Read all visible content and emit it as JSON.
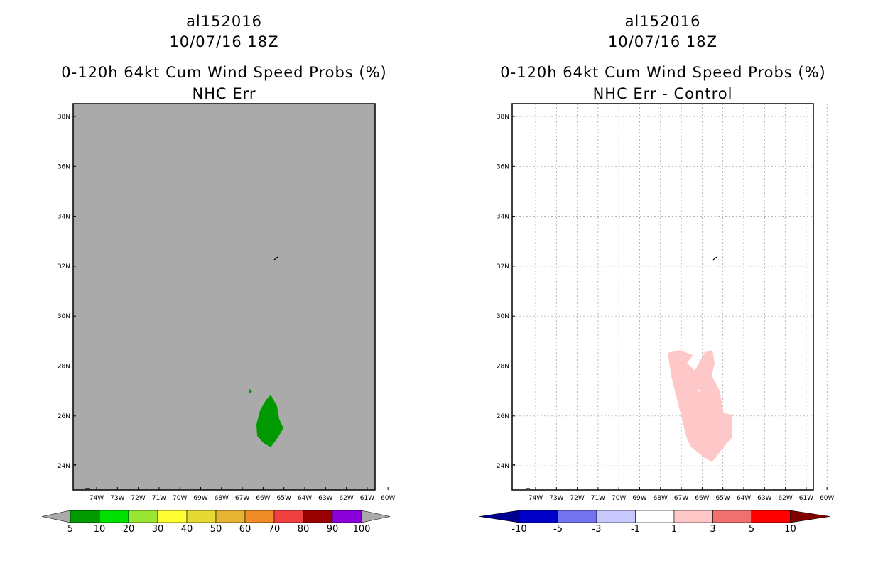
{
  "left": {
    "storm_id": "al152016",
    "datetime": "10/07/16 18Z",
    "title": "0-120h 64kt Cum Wind Speed Probs (%)",
    "subtitle": "NHC Err",
    "background_color": "#aaaaaa",
    "lat_labels": [
      "38N",
      "36N",
      "34N",
      "32N",
      "30N",
      "28N",
      "26N",
      "24N"
    ],
    "lon_labels": [
      "74W",
      "73W",
      "72W",
      "71W",
      "70W",
      "69W",
      "68W",
      "67W",
      "66W",
      "65W",
      "64W",
      "63W",
      "62W",
      "61W",
      "60W"
    ],
    "colorbar": {
      "colors": [
        "#009900",
        "#00e000",
        "#99e633",
        "#ffff33",
        "#e6d933",
        "#e6b333",
        "#f08c26",
        "#f04040",
        "#990000",
        "#8c00d9"
      ],
      "labels": [
        "5",
        "10",
        "20",
        "30",
        "40",
        "50",
        "60",
        "70",
        "80",
        "90",
        "100"
      ]
    },
    "contour_color": "#009900"
  },
  "right": {
    "storm_id": "al152016",
    "datetime": "10/07/16 18Z",
    "title": "0-120h 64kt Cum Wind Speed Probs (%)",
    "subtitle": "NHC Err - Control",
    "background_color": "#ffffff",
    "lat_labels": [
      "38N",
      "36N",
      "34N",
      "32N",
      "30N",
      "28N",
      "26N",
      "24N"
    ],
    "lon_labels": [
      "74W",
      "73W",
      "72W",
      "71W",
      "70W",
      "69W",
      "68W",
      "67W",
      "66W",
      "65W",
      "64W",
      "63W",
      "62W",
      "61W",
      "60W"
    ],
    "colorbar": {
      "colors": [
        "#0000c8",
        "#7373f0",
        "#c8c8ff",
        "#ffffff",
        "#ffc8c8",
        "#f07070",
        "#ff0000"
      ],
      "end_low": "#000090",
      "end_high": "#800000",
      "labels": [
        "-10",
        "-5",
        "-3",
        "-1",
        "1",
        "3",
        "5",
        "10"
      ]
    },
    "contour_color": "#ffc8c8"
  }
}
